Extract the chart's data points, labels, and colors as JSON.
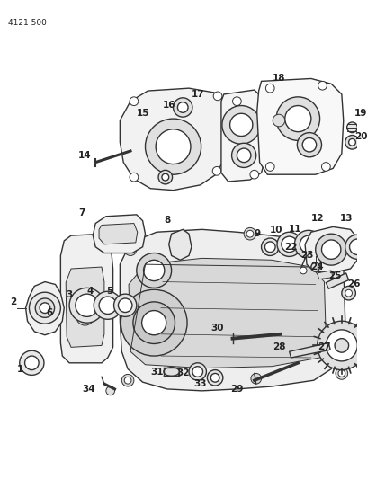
{
  "page_code": "4121 500",
  "background_color": "#ffffff",
  "line_color": "#333333",
  "label_color": "#222222",
  "figsize": [
    4.08,
    5.33
  ],
  "dpi": 100
}
